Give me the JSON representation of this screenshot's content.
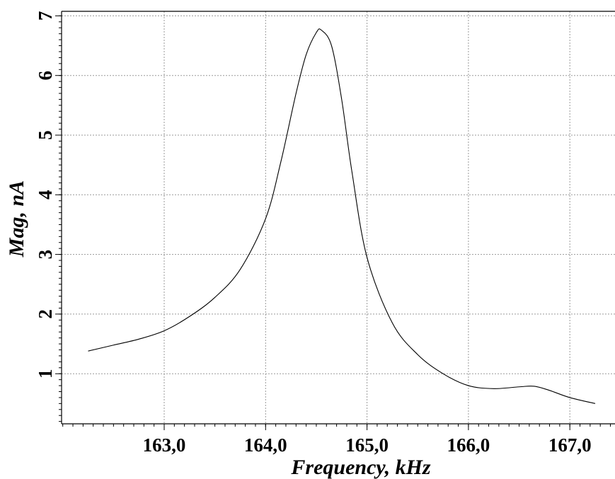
{
  "chart_data": {
    "type": "line",
    "xlabel": "Frequency, kHz",
    "ylabel": "Mag, nA",
    "xlim": [
      162.0,
      167.5
    ],
    "ylim": [
      0.0,
      7.0
    ],
    "x_ticks": [
      163.0,
      164.0,
      165.0,
      166.0,
      167.0
    ],
    "x_tick_labels": [
      "163,0",
      "164,0",
      "165,0",
      "166,0",
      "167,0"
    ],
    "y_ticks": [
      1,
      2,
      3,
      4,
      5,
      6,
      7
    ],
    "y_tick_labels": [
      "1",
      "2",
      "3",
      "4",
      "5",
      "6",
      "7"
    ],
    "grid": true,
    "series": [
      {
        "x": [
          162.25,
          162.5,
          162.75,
          163.0,
          163.25,
          163.5,
          163.75,
          164.0,
          164.15,
          164.3,
          164.4,
          164.5,
          164.55,
          164.65,
          164.75,
          164.85,
          165.0,
          165.25,
          165.5,
          165.75,
          166.0,
          166.25,
          166.5,
          166.65,
          166.8,
          167.0,
          167.25
        ],
        "y": [
          1.38,
          1.48,
          1.58,
          1.72,
          1.96,
          2.28,
          2.75,
          3.6,
          4.55,
          5.7,
          6.35,
          6.72,
          6.76,
          6.5,
          5.6,
          4.4,
          2.95,
          1.85,
          1.32,
          1.0,
          0.8,
          0.75,
          0.78,
          0.79,
          0.72,
          0.6,
          0.5
        ]
      }
    ]
  }
}
